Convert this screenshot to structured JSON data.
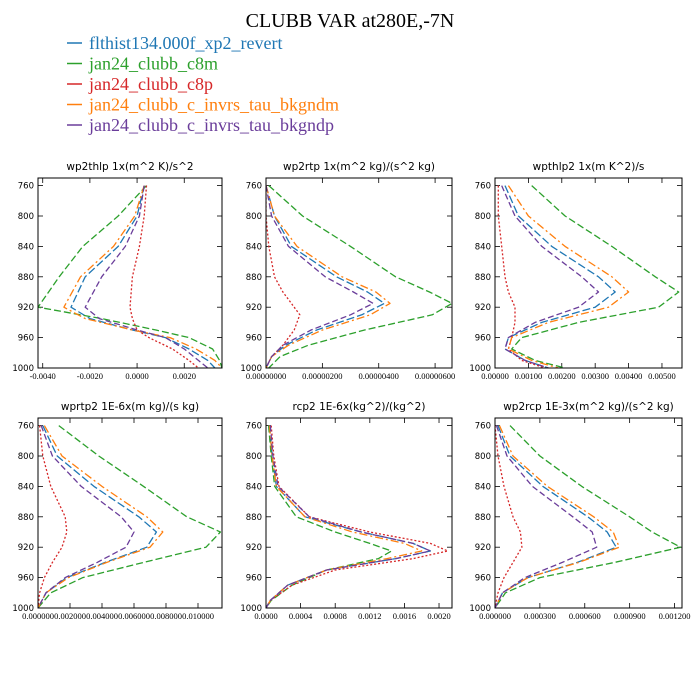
{
  "title": "CLUBB VAR at280E,-7N",
  "legend": [
    {
      "name": "flthist134.000f_xp2_revert",
      "color": "#1f77b4"
    },
    {
      "name": "jan24_clubb_c8m",
      "color": "#2ca02c"
    },
    {
      "name": "jan24_clubb_c8p",
      "color": "#d62728"
    },
    {
      "name": "jan24_clubb_c_invrs_tau_bkgndm",
      "color": "#ff7f0e"
    },
    {
      "name": "jan24_clubb_c_invrs_tau_bkgndp",
      "color": "#6a3d9a"
    }
  ],
  "chart_data": [
    {
      "type": "line",
      "title": "wp2thlp   1x(m^2 K)/s^2",
      "y": [
        760,
        800,
        840,
        880,
        920,
        935,
        950,
        960,
        975,
        990,
        1000
      ],
      "ylim": [
        1000,
        750
      ],
      "yticks": [
        760,
        800,
        840,
        880,
        920,
        960,
        1000
      ],
      "xlim": [
        -0.0042,
        0.0036
      ],
      "xticks": [
        -0.004,
        -0.002,
        0.0,
        0.002
      ],
      "xticklabels": [
        "-0.0040",
        "-0.0020",
        "0.0000",
        "0.0020"
      ],
      "series": [
        {
          "name": "flthist134.000f_xp2_revert",
          "values": [
            0.0003,
            0.0,
            -0.0008,
            -0.0022,
            -0.0028,
            -0.002,
            -0.0002,
            0.0012,
            0.0022,
            0.003,
            0.0033
          ]
        },
        {
          "name": "jan24_clubb_c8m",
          "values": [
            0.0004,
            -0.0008,
            -0.0023,
            -0.0033,
            -0.0042,
            -0.0015,
            0.0008,
            0.0022,
            0.0032,
            0.0035,
            0.0036
          ]
        },
        {
          "name": "jan24_clubb_c8p",
          "values": [
            0.0004,
            0.0003,
            0.0001,
            -0.0002,
            -0.0003,
            -0.0002,
            0.0,
            0.0005,
            0.0015,
            0.0022,
            0.0026
          ]
        },
        {
          "name": "jan24_clubb_c_invrs_tau_bkgndm",
          "values": [
            0.0003,
            -0.0001,
            -0.001,
            -0.0024,
            -0.0031,
            -0.0022,
            -0.0002,
            0.0014,
            0.0025,
            0.0033,
            0.0036
          ]
        },
        {
          "name": "jan24_clubb_c_invrs_tau_bkgndp",
          "values": [
            0.0003,
            0.0001,
            -0.0005,
            -0.0015,
            -0.0022,
            -0.0016,
            0.0,
            0.0012,
            0.002,
            0.0026,
            0.003
          ]
        }
      ]
    },
    {
      "type": "line",
      "title": "wp2rtp   1x(m^2 kg)/(s^2 kg)",
      "y": [
        760,
        800,
        840,
        880,
        900,
        915,
        930,
        950,
        970,
        985,
        1000
      ],
      "ylim": [
        1000,
        750
      ],
      "yticks": [
        760,
        800,
        840,
        880,
        920,
        960,
        1000
      ],
      "xlim": [
        0,
        6.6e-06
      ],
      "xticks": [
        0,
        2e-06,
        4e-06,
        6e-06
      ],
      "xticklabels": [
        "0.00000000",
        "0.00000200",
        "0.00000400",
        "0.00000600"
      ],
      "series": [
        {
          "name": "flthist134.000f_xp2_revert",
          "values": [
            0.0,
            3e-07,
            9e-07,
            2.5e-06,
            3.6e-06,
            4.2e-06,
            3.4e-06,
            1.8e-06,
            7e-07,
            2e-07,
            0.0
          ]
        },
        {
          "name": "jan24_clubb_c8m",
          "values": [
            1e-07,
            1.3e-06,
            3e-06,
            4.6e-06,
            5.8e-06,
            6.6e-06,
            5.9e-06,
            3.5e-06,
            1.5e-06,
            5e-07,
            1e-07
          ]
        },
        {
          "name": "jan24_clubb_c8p",
          "values": [
            0.0,
            0.0,
            1e-07,
            3e-07,
            6e-07,
            9e-07,
            1.2e-06,
            1e-06,
            6e-07,
            2e-07,
            0.0
          ]
        },
        {
          "name": "jan24_clubb_c_invrs_tau_bkgndm",
          "values": [
            0.0,
            3e-07,
            1.1e-06,
            2.7e-06,
            3.9e-06,
            4.4e-06,
            3.7e-06,
            2e-06,
            8e-07,
            2e-07,
            0.0
          ]
        },
        {
          "name": "jan24_clubb_c_invrs_tau_bkgndp",
          "values": [
            0.0,
            2e-07,
            8e-07,
            2.1e-06,
            3.1e-06,
            3.8e-06,
            3e-06,
            1.6e-06,
            6e-07,
            2e-07,
            0.0
          ]
        }
      ]
    },
    {
      "type": "line",
      "title": "wpthlp2   1x(m K^2)/s",
      "y": [
        760,
        800,
        840,
        880,
        900,
        920,
        940,
        960,
        975,
        990,
        1000
      ],
      "ylim": [
        1000,
        750
      ],
      "yticks": [
        760,
        800,
        840,
        880,
        920,
        960,
        1000
      ],
      "xlim": [
        0,
        0.0056
      ],
      "xticks": [
        0,
        0.001,
        0.002,
        0.003,
        0.004,
        0.005
      ],
      "xticklabels": [
        "0.00000",
        "0.00100",
        "0.00200",
        "0.00300",
        "0.00400",
        "0.00500"
      ],
      "series": [
        {
          "name": "flthist134.000f_xp2_revert",
          "values": [
            0.0003,
            0.0007,
            0.0017,
            0.0031,
            0.0036,
            0.003,
            0.0014,
            0.0004,
            0.0003,
            0.0009,
            0.0016
          ]
        },
        {
          "name": "jan24_clubb_c8m",
          "values": [
            0.0011,
            0.0021,
            0.0035,
            0.0048,
            0.0055,
            0.0049,
            0.0025,
            0.0008,
            0.0005,
            0.0012,
            0.0021
          ]
        },
        {
          "name": "jan24_clubb_c8p",
          "values": [
            0.0001,
            0.0001,
            0.0002,
            0.0003,
            0.0004,
            0.0006,
            0.0006,
            0.0005,
            0.0004,
            0.0008,
            0.0015
          ]
        },
        {
          "name": "jan24_clubb_c_invrs_tau_bkgndm",
          "values": [
            0.0004,
            0.001,
            0.0021,
            0.0035,
            0.004,
            0.0034,
            0.0016,
            0.0005,
            0.0004,
            0.0011,
            0.0019
          ]
        },
        {
          "name": "jan24_clubb_c_invrs_tau_bkgndp",
          "values": [
            0.0002,
            0.0006,
            0.0014,
            0.0026,
            0.0031,
            0.0025,
            0.0012,
            0.0004,
            0.0003,
            0.0009,
            0.0016
          ]
        }
      ]
    },
    {
      "type": "line",
      "title": "wprtp2   1E-6x(m kg)/(s kg)",
      "y": [
        760,
        800,
        840,
        880,
        900,
        920,
        940,
        960,
        980,
        1000
      ],
      "ylim": [
        1000,
        750
      ],
      "yticks": [
        760,
        800,
        840,
        880,
        920,
        960,
        1000
      ],
      "xlim": [
        0,
        0.0115
      ],
      "xticks": [
        0,
        0.002,
        0.004,
        0.006,
        0.008,
        0.01
      ],
      "xticklabels": [
        "0.000000",
        "0.002000",
        "0.004000",
        "0.006000",
        "0.008000",
        "0.010000"
      ],
      "series": [
        {
          "name": "flthist134.000f_xp2_revert",
          "values": [
            0.0003,
            0.0012,
            0.0035,
            0.0063,
            0.0074,
            0.0068,
            0.0042,
            0.0018,
            0.0005,
            0.0
          ]
        },
        {
          "name": "jan24_clubb_c8m",
          "values": [
            0.0013,
            0.0038,
            0.0066,
            0.0093,
            0.0114,
            0.0105,
            0.0066,
            0.0028,
            0.0008,
            0.0
          ]
        },
        {
          "name": "jan24_clubb_c8p",
          "values": [
            0.0001,
            0.0003,
            0.0008,
            0.0017,
            0.0018,
            0.0015,
            0.0009,
            0.0004,
            0.0001,
            0.0
          ]
        },
        {
          "name": "jan24_clubb_c_invrs_tau_bkgndm",
          "values": [
            0.0004,
            0.0015,
            0.004,
            0.0068,
            0.0078,
            0.007,
            0.0043,
            0.0019,
            0.0005,
            0.0
          ]
        },
        {
          "name": "jan24_clubb_c_invrs_tau_bkgndp",
          "values": [
            0.0002,
            0.0009,
            0.0027,
            0.0052,
            0.006,
            0.0055,
            0.0037,
            0.0017,
            0.0005,
            0.0
          ]
        }
      ]
    },
    {
      "type": "line",
      "title": "rcp2   1E-6x(kg^2)/(kg^2)",
      "y": [
        760,
        800,
        840,
        880,
        900,
        915,
        925,
        935,
        950,
        970,
        990,
        1000
      ],
      "ylim": [
        1000,
        750
      ],
      "yticks": [
        760,
        800,
        840,
        880,
        920,
        960,
        1000
      ],
      "xlim": [
        0,
        0.00215
      ],
      "xticks": [
        0,
        0.0004,
        0.0008,
        0.0012,
        0.0016,
        0.002
      ],
      "xticklabels": [
        "0.0000",
        "0.0004",
        "0.0008",
        "0.0012",
        "0.0016",
        "0.0020"
      ],
      "series": [
        {
          "name": "flthist134.000f_xp2_revert",
          "values": [
            4e-05,
            7e-05,
            0.00012,
            0.00045,
            0.0011,
            0.0017,
            0.0019,
            0.0015,
            0.0007,
            0.00025,
            5e-05,
            0.0
          ]
        },
        {
          "name": "jan24_clubb_c8m",
          "values": [
            3e-05,
            6e-05,
            0.0001,
            0.00035,
            0.0008,
            0.0012,
            0.00145,
            0.0013,
            0.0007,
            0.0003,
            6e-05,
            0.0
          ]
        },
        {
          "name": "jan24_clubb_c8p",
          "values": [
            6e-05,
            9e-05,
            0.00015,
            0.0005,
            0.0012,
            0.0019,
            0.0021,
            0.0017,
            0.0008,
            0.0003,
            5e-05,
            0.0
          ]
        },
        {
          "name": "jan24_clubb_c_invrs_tau_bkgndm",
          "values": [
            4e-05,
            7e-05,
            0.00012,
            0.00045,
            0.001,
            0.0016,
            0.0018,
            0.0014,
            0.0007,
            0.00025,
            5e-05,
            0.0
          ]
        },
        {
          "name": "jan24_clubb_c_invrs_tau_bkgndp",
          "values": [
            5e-05,
            8e-05,
            0.00014,
            0.0005,
            0.0011,
            0.0017,
            0.0019,
            0.0015,
            0.0007,
            0.00025,
            5e-05,
            0.0
          ]
        }
      ]
    },
    {
      "type": "line",
      "title": "wp2rcp   1E-3x(m^2 kg)/(s^2 kg)",
      "y": [
        760,
        800,
        840,
        880,
        900,
        920,
        940,
        960,
        980,
        1000
      ],
      "ylim": [
        1000,
        750
      ],
      "yticks": [
        760,
        800,
        840,
        880,
        920,
        960,
        1000
      ],
      "xlim": [
        0,
        0.00125
      ],
      "xticks": [
        0,
        0.0003,
        0.0006,
        0.0009,
        0.0012
      ],
      "xticklabels": [
        "0.000000",
        "0.000300",
        "0.000600",
        "0.000900",
        "0.001200"
      ],
      "series": [
        {
          "name": "flthist134.000f_xp2_revert",
          "values": [
            2e-05,
            0.0001,
            0.00032,
            0.00062,
            0.00075,
            0.00081,
            0.00055,
            0.00022,
            5e-05,
            0.0
          ]
        },
        {
          "name": "jan24_clubb_c8m",
          "values": [
            0.0001,
            0.0003,
            0.00058,
            0.0009,
            0.00105,
            0.00124,
            0.0008,
            0.0003,
            7e-05,
            0.0
          ]
        },
        {
          "name": "jan24_clubb_c8p",
          "values": [
            0.0,
            2e-05,
            6e-05,
            0.00012,
            0.00017,
            0.00018,
            0.00012,
            6e-05,
            2e-05,
            0.0
          ]
        },
        {
          "name": "jan24_clubb_c_invrs_tau_bkgndm",
          "values": [
            3e-05,
            0.00012,
            0.00035,
            0.00066,
            0.00079,
            0.00083,
            0.00056,
            0.00022,
            5e-05,
            0.0
          ]
        },
        {
          "name": "jan24_clubb_c_invrs_tau_bkgndp",
          "values": [
            1e-05,
            8e-05,
            0.00025,
            0.00052,
            0.00065,
            0.00068,
            0.00045,
            0.0002,
            5e-05,
            0.0
          ]
        }
      ]
    }
  ]
}
